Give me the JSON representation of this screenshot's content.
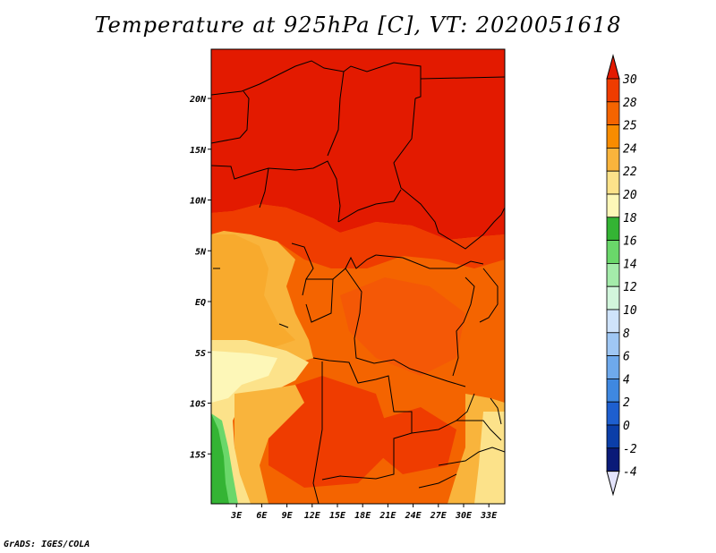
{
  "title": "Temperature at 925hPa [C], VT: 2020051618",
  "credit": "GrADS: IGES/COLA",
  "map": {
    "lat_ticks": [
      "20N",
      "15N",
      "10N",
      "5N",
      "EQ",
      "5S",
      "10S",
      "15S"
    ],
    "lon_ticks": [
      "3E",
      "6E",
      "9E",
      "12E",
      "15E",
      "18E",
      "21E",
      "24E",
      "27E",
      "30E",
      "33E"
    ],
    "lat_values": [
      20,
      15,
      10,
      5,
      0,
      -5,
      -10,
      -15
    ],
    "lon_values": [
      3,
      6,
      9,
      12,
      15,
      18,
      21,
      24,
      27,
      30,
      33
    ]
  },
  "colorbar": {
    "labels": [
      "30",
      "28",
      "25",
      "24",
      "22",
      "20",
      "18",
      "16",
      "14",
      "12",
      "10",
      "8",
      "6",
      "4",
      "2",
      "0",
      "-2",
      "-4"
    ],
    "colors": [
      "#e31a00",
      "#ef3c00",
      "#f46400",
      "#f88c00",
      "#f9b43c",
      "#fce28a",
      "#fdf7b8",
      "#34b434",
      "#6ad76a",
      "#a4ebaa",
      "#d2f6dc",
      "#cfe3fb",
      "#9fc7f4",
      "#6ea9ec",
      "#3f88e0",
      "#1e5fcf",
      "#0b3ea8",
      "#0a1a78",
      "#e3e3fb"
    ]
  }
}
